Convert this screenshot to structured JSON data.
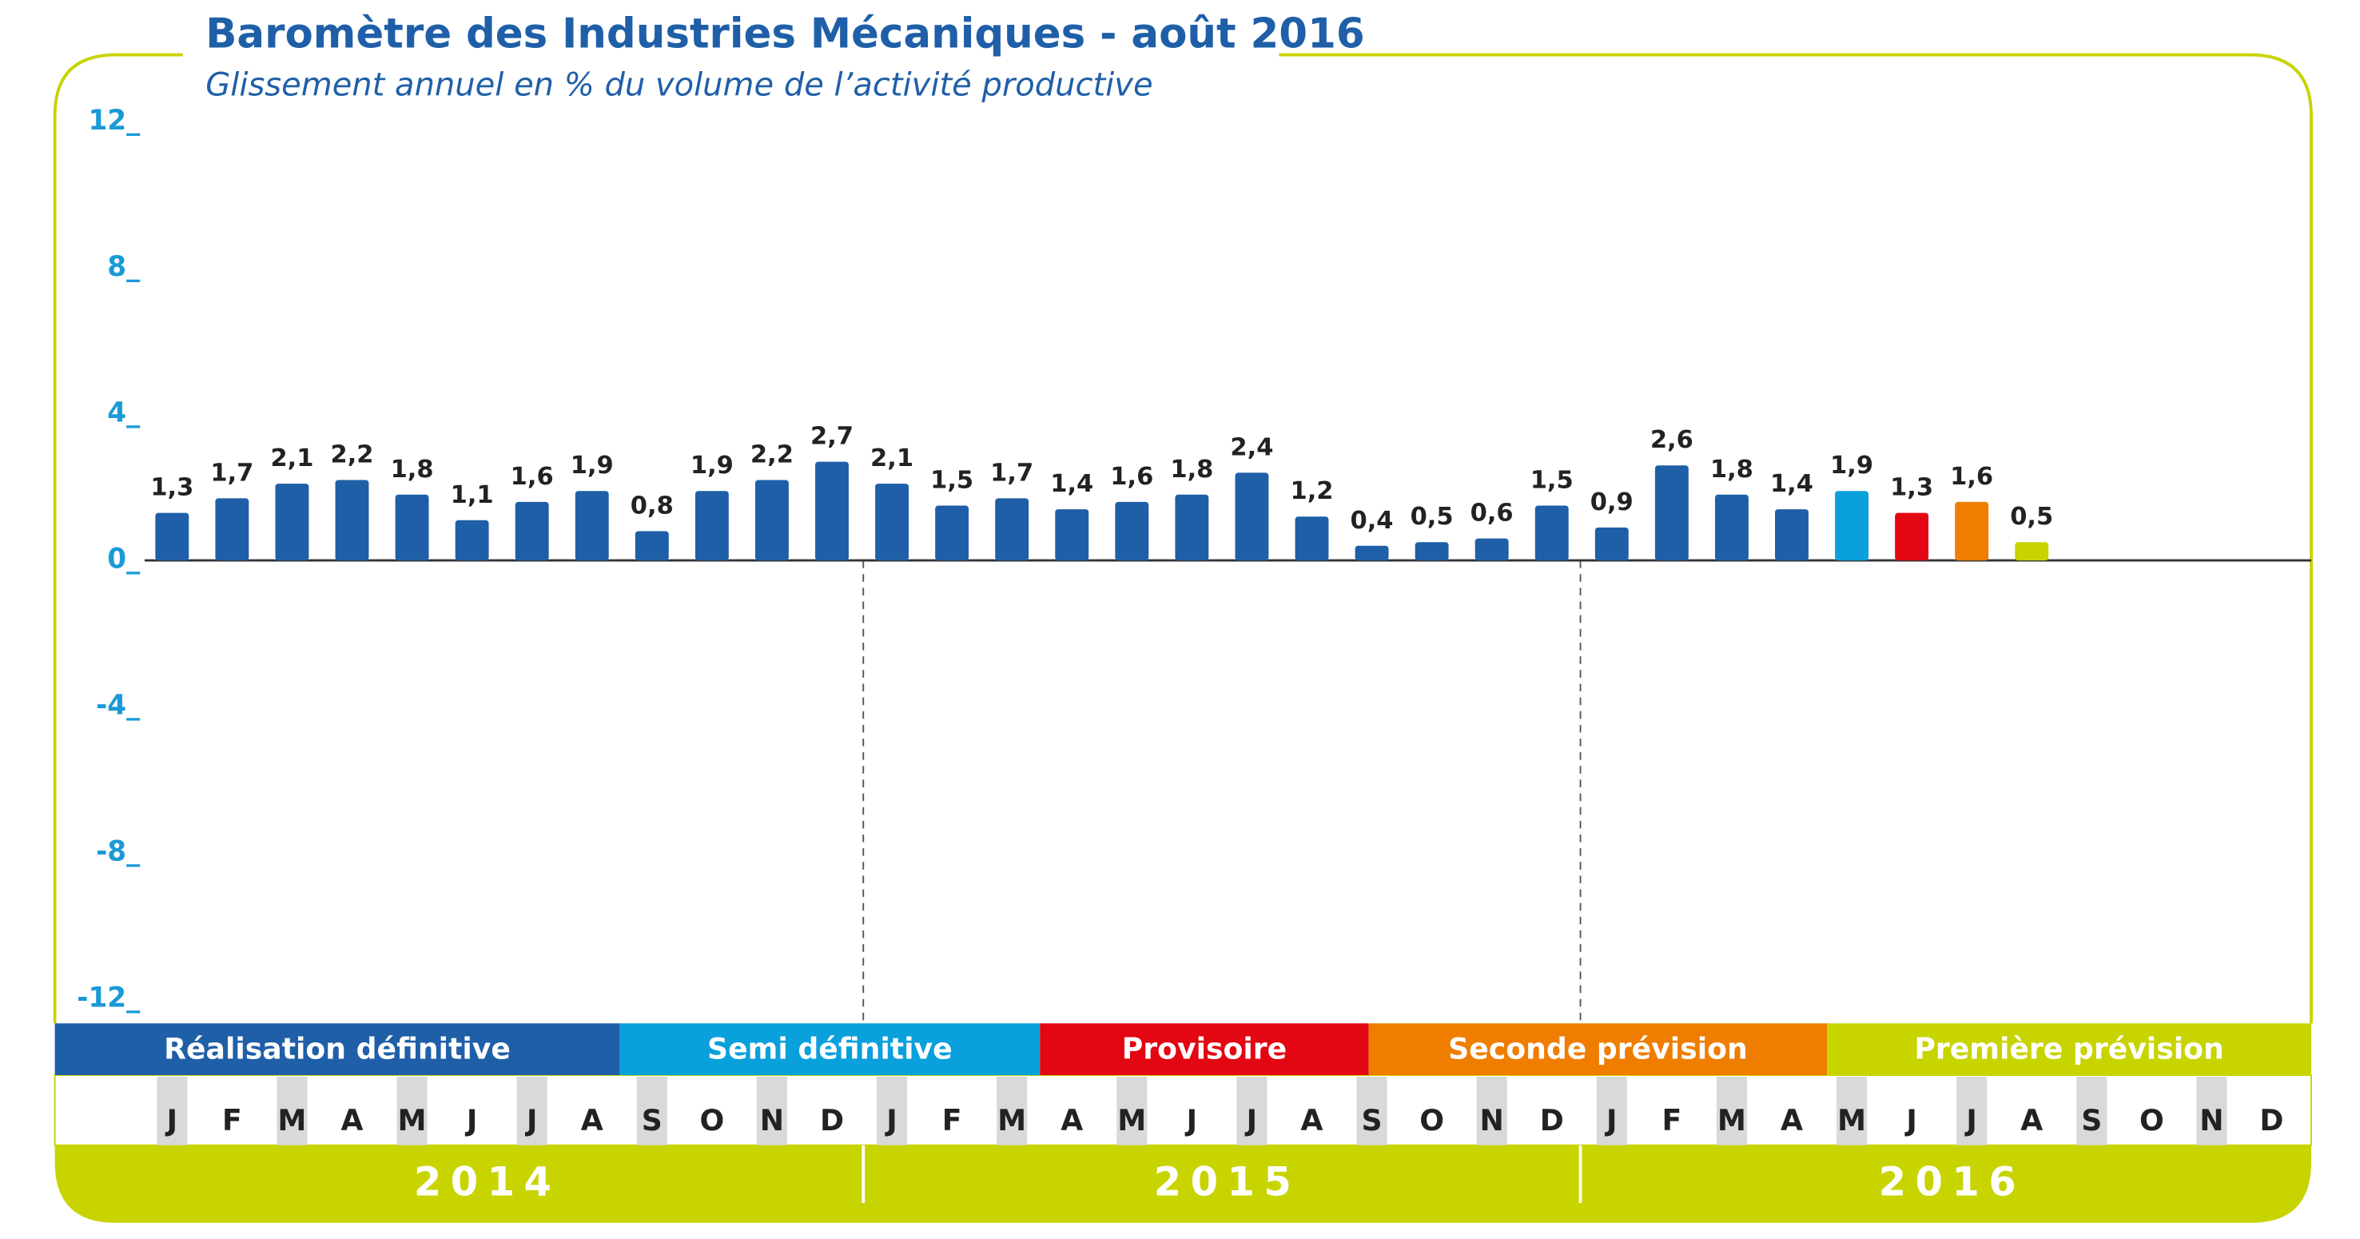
{
  "chart_data": {
    "type": "bar",
    "title": "Baromètre des Industries Mécaniques - août 2016",
    "subtitle": "Glissement annuel en % du volume de l’activité productive",
    "categories": [
      "J",
      "F",
      "M",
      "A",
      "M",
      "J",
      "J",
      "A",
      "S",
      "O",
      "N",
      "D",
      "J",
      "F",
      "M",
      "A",
      "M",
      "J",
      "J",
      "A",
      "S",
      "O",
      "N",
      "D",
      "J",
      "F",
      "M",
      "A",
      "M",
      "J",
      "J",
      "A",
      "S",
      "O",
      "N",
      "D"
    ],
    "years": [
      "2014",
      "2015",
      "2016"
    ],
    "values": [
      1.3,
      1.7,
      2.1,
      2.2,
      1.8,
      1.1,
      1.6,
      1.9,
      0.8,
      1.9,
      2.2,
      2.7,
      2.1,
      1.5,
      1.7,
      1.4,
      1.6,
      1.8,
      2.4,
      1.2,
      0.4,
      0.5,
      0.6,
      1.5,
      0.9,
      2.6,
      1.8,
      1.4,
      1.9,
      1.3,
      1.6,
      0.5,
      null,
      null,
      null,
      null
    ],
    "value_labels": [
      "1,3",
      "1,7",
      "2,1",
      "2,2",
      "1,8",
      "1,1",
      "1,6",
      "1,9",
      "0,8",
      "1,9",
      "2,2",
      "2,7",
      "2,1",
      "1,5",
      "1,7",
      "1,4",
      "1,6",
      "1,8",
      "2,4",
      "1,2",
      "0,4",
      "0,5",
      "0,6",
      "1,5",
      "0,9",
      "2,6",
      "1,8",
      "1,4",
      "1,9",
      "1,3",
      "1,6",
      "0,5",
      null,
      null,
      null,
      null
    ],
    "colors": [
      "#1f5fa8",
      "#1f5fa8",
      "#1f5fa8",
      "#1f5fa8",
      "#1f5fa8",
      "#1f5fa8",
      "#1f5fa8",
      "#1f5fa8",
      "#1f5fa8",
      "#1f5fa8",
      "#1f5fa8",
      "#1f5fa8",
      "#1f5fa8",
      "#1f5fa8",
      "#1f5fa8",
      "#1f5fa8",
      "#1f5fa8",
      "#1f5fa8",
      "#1f5fa8",
      "#1f5fa8",
      "#1f5fa8",
      "#1f5fa8",
      "#1f5fa8",
      "#1f5fa8",
      "#1f5fa8",
      "#1f5fa8",
      "#1f5fa8",
      "#1f5fa8",
      "#0aa0dc",
      "#e30613",
      "#ef7d00",
      "#c8d400",
      null,
      null,
      null,
      null
    ],
    "legend": [
      {
        "name": "Réalisation définitive",
        "color": "#1f5fa8"
      },
      {
        "name": "Semi définitive",
        "color": "#0aa0dc"
      },
      {
        "name": "Provisoire",
        "color": "#e30613"
      },
      {
        "name": "Seconde prévision",
        "color": "#ef7d00"
      },
      {
        "name": "Première prévision",
        "color": "#c8d400"
      }
    ],
    "ylim": [
      -12,
      12
    ],
    "yticks": [
      {
        "value": -12,
        "label": "-12_"
      },
      {
        "value": -8,
        "label": "-8_"
      },
      {
        "value": -4,
        "label": "-4_"
      },
      {
        "value": 0,
        "label": "0_"
      },
      {
        "value": 4,
        "label": "4_"
      },
      {
        "value": 8,
        "label": "8_"
      },
      {
        "value": 12,
        "label": "12_"
      }
    ]
  }
}
